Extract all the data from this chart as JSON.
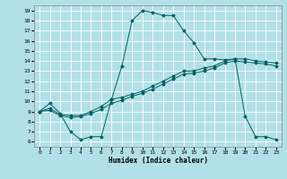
{
  "xlabel": "Humidex (Indice chaleur)",
  "x_values": [
    0,
    1,
    2,
    3,
    4,
    5,
    6,
    7,
    8,
    9,
    10,
    11,
    12,
    13,
    14,
    15,
    16,
    17,
    18,
    19,
    20,
    21,
    22,
    23
  ],
  "curve1_y": [
    9.0,
    9.8,
    8.8,
    7.0,
    6.2,
    6.5,
    6.5,
    10.2,
    13.5,
    18.0,
    19.0,
    18.8,
    18.5,
    18.5,
    17.0,
    15.8,
    14.2,
    14.2,
    14.1,
    14.2,
    8.5,
    6.5,
    6.5,
    6.2
  ],
  "curve2_y": [
    9.0,
    9.3,
    8.7,
    8.6,
    8.6,
    9.0,
    9.5,
    10.2,
    10.4,
    10.7,
    11.0,
    11.5,
    12.0,
    12.5,
    13.0,
    13.0,
    13.3,
    13.5,
    14.0,
    14.2,
    14.2,
    14.0,
    13.9,
    13.8
  ],
  "curve3_y": [
    9.0,
    9.1,
    8.6,
    8.4,
    8.5,
    8.8,
    9.2,
    9.8,
    10.1,
    10.5,
    10.8,
    11.2,
    11.7,
    12.2,
    12.7,
    12.8,
    13.0,
    13.3,
    13.8,
    14.0,
    13.9,
    13.8,
    13.7,
    13.5
  ],
  "ylim_min": 5.5,
  "ylim_max": 19.5,
  "xlim_min": -0.5,
  "xlim_max": 23.5,
  "yticks": [
    6,
    7,
    8,
    9,
    10,
    11,
    12,
    13,
    14,
    15,
    16,
    17,
    18,
    19
  ],
  "xticks": [
    0,
    1,
    2,
    3,
    4,
    5,
    6,
    7,
    8,
    9,
    10,
    11,
    12,
    13,
    14,
    15,
    16,
    17,
    18,
    19,
    20,
    21,
    22,
    23
  ],
  "line_color": "#006060",
  "bg_color": "#b2e0e8",
  "grid_color": "#ffffff"
}
